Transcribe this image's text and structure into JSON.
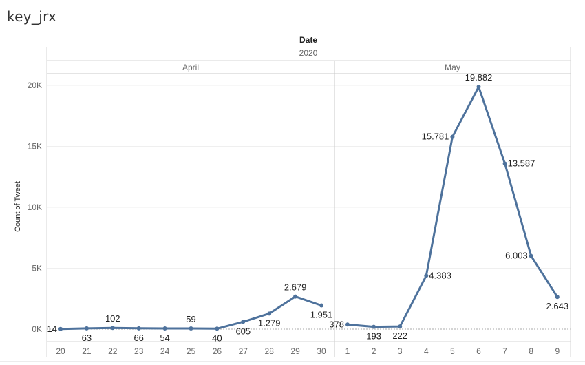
{
  "page": {
    "title": "key_jrx"
  },
  "chart_data": {
    "type": "line",
    "column_header": "Date",
    "year": "2020",
    "ylabel": "Count of Tweet",
    "ylim": [
      0,
      21500
    ],
    "yticks": [
      {
        "value": 0,
        "label": "0K"
      },
      {
        "value": 5000,
        "label": "5K"
      },
      {
        "value": 10000,
        "label": "10K"
      },
      {
        "value": 15000,
        "label": "15K"
      },
      {
        "value": 20000,
        "label": "20K"
      }
    ],
    "color": "#4e729c",
    "panels": [
      {
        "month": "April",
        "days": [
          "20",
          "21",
          "22",
          "23",
          "24",
          "25",
          "26",
          "27",
          "28",
          "29",
          "30"
        ],
        "values": [
          14,
          63,
          102,
          66,
          54,
          59,
          40,
          605,
          1279,
          2679,
          1951
        ],
        "labels": [
          "14",
          "63",
          "102",
          "66",
          "54",
          "59",
          "40",
          "605",
          "1.279",
          "2.679",
          "1.951"
        ],
        "label_pos": [
          "left",
          "below",
          "above",
          "below",
          "below",
          "above",
          "below",
          "below",
          "below",
          "above",
          "below"
        ]
      },
      {
        "month": "May",
        "days": [
          "1",
          "2",
          "3",
          "4",
          "5",
          "6",
          "7",
          "8",
          "9"
        ],
        "values": [
          378,
          193,
          222,
          4383,
          15781,
          19882,
          13587,
          6003,
          2643
        ],
        "labels": [
          "378",
          "193",
          "222",
          "4.383",
          "15.781",
          "19.882",
          "13.587",
          "6.003",
          "2.643"
        ],
        "label_pos": [
          "left",
          "below",
          "below",
          "right",
          "left",
          "above",
          "right",
          "left",
          "below"
        ]
      }
    ]
  }
}
